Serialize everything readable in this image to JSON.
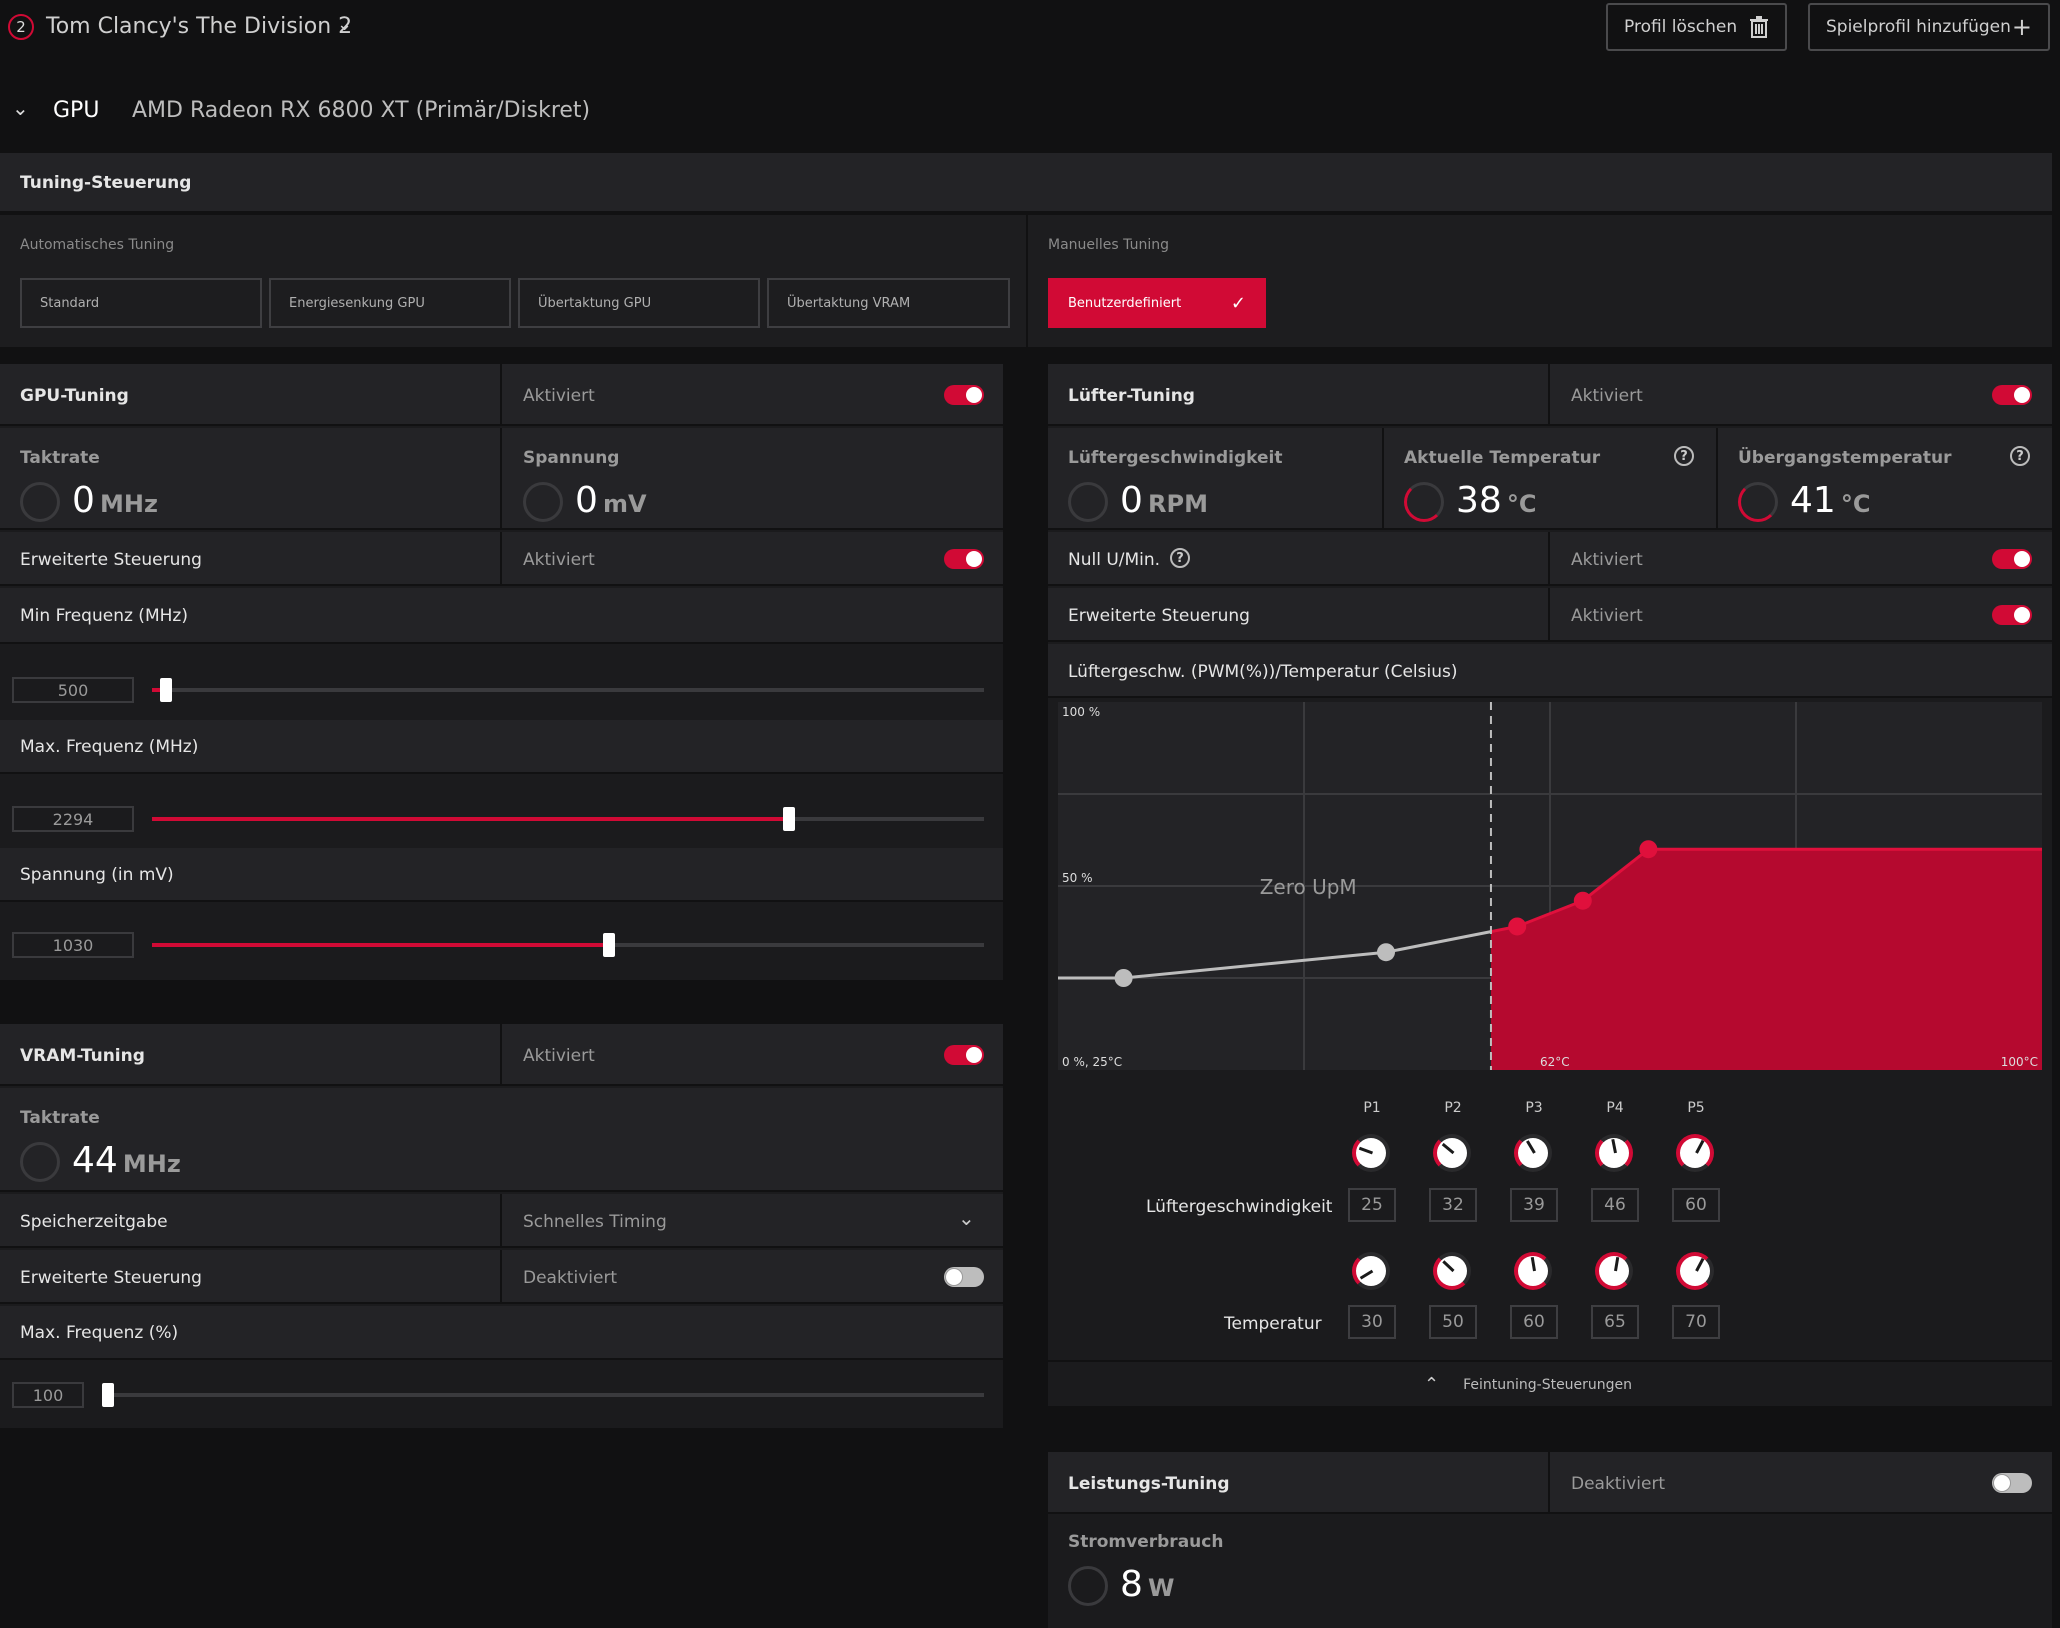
{
  "header": {
    "profile_badge": "2",
    "game_title": "Tom Clancy's The Division 2",
    "delete_profile": "Profil löschen",
    "add_profile": "Spielprofil hinzufügen",
    "gpu_label": "GPU",
    "gpu_name": "AMD Radeon RX 6800 XT (Primär/Diskret)"
  },
  "tuning_control": {
    "title": "Tuning-Steuerung",
    "auto_label": "Automatisches Tuning",
    "manual_label": "Manuelles Tuning",
    "presets": [
      "Standard",
      "Energiesenkung GPU",
      "Übertaktung GPU",
      "Übertaktung VRAM"
    ],
    "custom": "Benutzerdefiniert"
  },
  "gpu_tuning": {
    "title": "GPU-Tuning",
    "state": "Aktiviert",
    "clock_label": "Taktrate",
    "clock_value": "0",
    "clock_unit": "MHz",
    "voltage_label": "Spannung",
    "voltage_value": "0",
    "voltage_unit": "mV",
    "advanced_label": "Erweiterte Steuerung",
    "advanced_state": "Aktiviert",
    "min_freq_label": "Min Frequenz (MHz)",
    "min_freq_value": "500",
    "min_freq_pct": 0.01,
    "max_freq_label": "Max. Frequenz (MHz)",
    "max_freq_value": "2294",
    "max_freq_pct": 0.77,
    "voltage_slider_label": "Spannung (in mV)",
    "voltage_slider_value": "1030",
    "voltage_slider_pct": 0.55
  },
  "vram_tuning": {
    "title": "VRAM-Tuning",
    "state": "Aktiviert",
    "clock_label": "Taktrate",
    "clock_value": "44",
    "clock_unit": "MHz",
    "timing_label": "Speicherzeitgabe",
    "timing_value": "Schnelles Timing",
    "advanced_label": "Erweiterte Steuerung",
    "advanced_state": "Deaktiviert",
    "max_freq_label": "Max. Frequenz (%)",
    "max_freq_value": "100",
    "max_freq_pct": 0.0
  },
  "fan_tuning": {
    "title": "Lüfter-Tuning",
    "state": "Aktiviert",
    "fan_speed_label": "Lüftergeschwindigkeit",
    "fan_speed_value": "0",
    "fan_speed_unit": "RPM",
    "cur_temp_label": "Aktuelle Temperatur",
    "cur_temp_value": "38",
    "cur_temp_unit": "°C",
    "junction_label": "Übergangstemperatur",
    "junction_value": "41",
    "junction_unit": "°C",
    "zero_rpm_label": "Null U/Min.",
    "zero_rpm_state": "Aktiviert",
    "advanced_label": "Erweiterte Steuerung",
    "advanced_state": "Aktiviert",
    "curve_title": "Lüftergeschw. (PWM(%))/Temperatur (Celsius)",
    "fine_tuning": "Feintuning-Steuerungen",
    "points_labels": [
      "P1",
      "P2",
      "P3",
      "P4",
      "P5"
    ],
    "speed_row_label": "Lüftergeschwindigkeit",
    "temp_row_label": "Temperatur",
    "speeds": [
      "25",
      "32",
      "39",
      "46",
      "60"
    ],
    "temps": [
      "30",
      "50",
      "60",
      "65",
      "70"
    ]
  },
  "chart_data": {
    "type": "area",
    "title": "Lüftergeschw. (PWM(%))/Temperatur (Celsius)",
    "y_top_label": "100 %",
    "y_mid_label": "50 %",
    "origin_label": "0 %, 25°C",
    "x_mid_label": "62°C",
    "x_max_label": "100°C",
    "zone_label": "Zero UpM",
    "xlim": [
      25,
      100
    ],
    "ylim": [
      0,
      100
    ],
    "zero_rpm_threshold": 58,
    "points": [
      {
        "x": 30,
        "y": 25
      },
      {
        "x": 50,
        "y": 32
      },
      {
        "x": 60,
        "y": 39
      },
      {
        "x": 65,
        "y": 46
      },
      {
        "x": 70,
        "y": 60
      }
    ]
  },
  "power_tuning": {
    "title": "Leistungs-Tuning",
    "state": "Deaktiviert",
    "power_label": "Stromverbrauch",
    "power_value": "8",
    "power_unit": "W"
  }
}
